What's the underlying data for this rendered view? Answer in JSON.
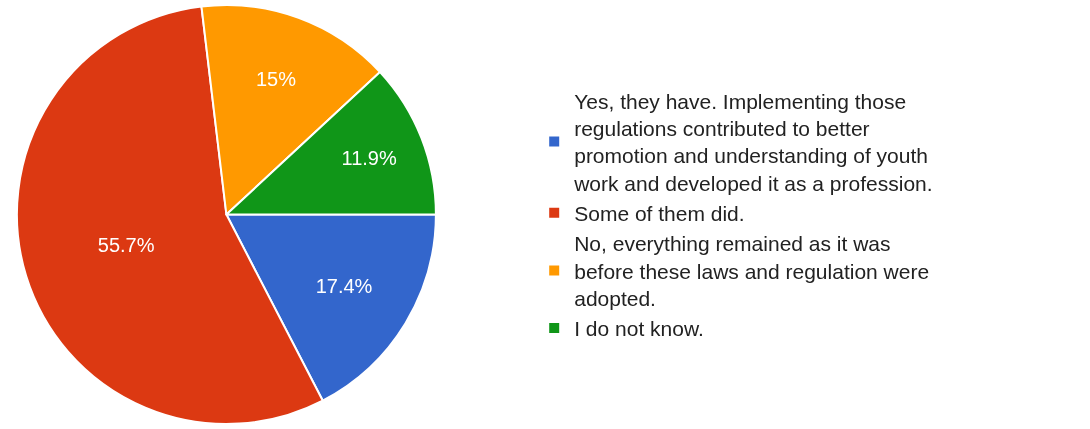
{
  "chart_data": {
    "type": "pie",
    "categories": [
      "Yes, they have. Implementing those regulations contributed to better promotion and understanding of youth work and developed it as a profession.",
      "Some of them did.",
      "No, everything remained as it was before these laws and regulation were adopted.",
      "I do not know."
    ],
    "values": [
      17.4,
      55.7,
      15,
      11.9
    ],
    "value_labels": [
      "17.4%",
      "55.7%",
      "15%",
      "11.9%"
    ],
    "colors": [
      "#3366cc",
      "#dc3912",
      "#ff9900",
      "#109618"
    ],
    "legend": "right"
  }
}
